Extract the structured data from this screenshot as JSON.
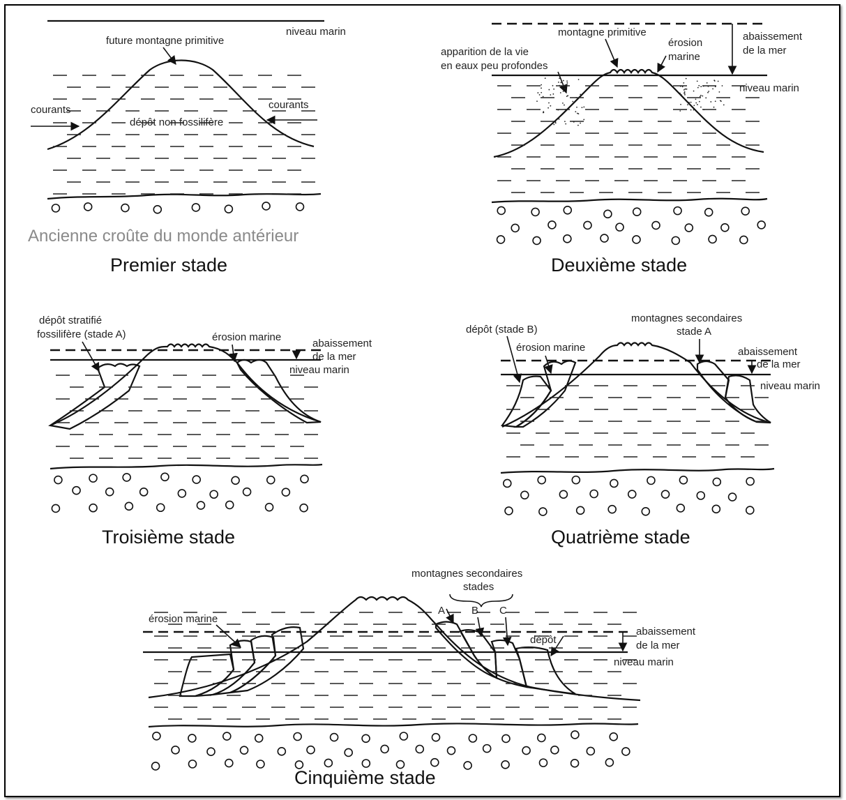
{
  "stages": {
    "s1": {
      "title": "Premier stade",
      "crust_label": "Ancienne croûte du monde antérieur",
      "sea_level": "niveau marin",
      "mountain": "future montagne primitive",
      "currents_left": "courants",
      "currents_right": "courants",
      "deposit": "dépôt non fossilifère"
    },
    "s2": {
      "title": "Deuxième stade",
      "mountain": "montagne primitive",
      "erosion_1": "érosion",
      "erosion_2": "marine",
      "lowering_1": "abaissement",
      "lowering_2": "de la mer",
      "life_1": "apparition de la vie",
      "life_2": "en eaux peu profondes",
      "sea_level": "niveau marin"
    },
    "s3": {
      "title": "Troisième stade",
      "deposit_1": "dépôt stratifié",
      "deposit_2": "fossilifère (stade A)",
      "erosion": "érosion marine",
      "lowering_1": "abaissement",
      "lowering_2": "de la mer",
      "sea_level": "niveau marin"
    },
    "s4": {
      "title": "Quatrième stade",
      "deposit": "dépôt (stade B)",
      "erosion": "érosion marine",
      "secondary_1": "montagnes secondaires",
      "secondary_2": "stade A",
      "lowering_1": "abaissement",
      "lowering_2": "de la mer",
      "sea_level": "niveau marin"
    },
    "s5": {
      "title": "Cinquième stade",
      "secondary_1": "montagnes secondaires",
      "secondary_2": "stades",
      "stage_a": "A",
      "stage_b": "B",
      "stage_c": "C",
      "erosion": "érosion marine",
      "deposit": "dépôt",
      "lowering_1": "abaissement",
      "lowering_2": "de la mer",
      "sea_level": "niveau marin"
    }
  },
  "colors": {
    "ink": "#111111",
    "crust_label": "#8a8a8a",
    "background": "#ffffff"
  }
}
